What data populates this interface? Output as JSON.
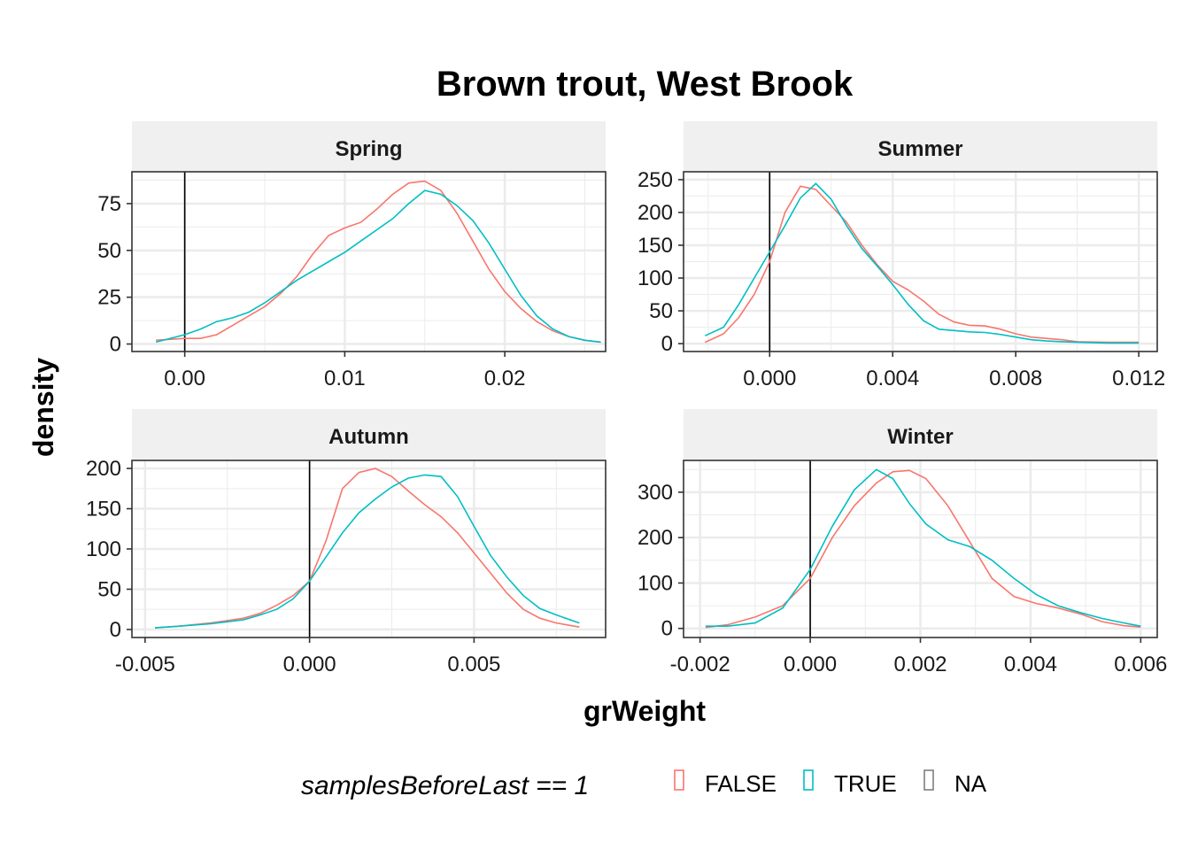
{
  "chart_data": {
    "type": "line",
    "chart_kind": "density",
    "title": "Brown trout, West Brook",
    "xlabel": "grWeight",
    "ylabel": "density",
    "grid": true,
    "legend": {
      "title": "samplesBeforeLast == 1",
      "placement": "bottom",
      "entries": [
        {
          "label": "FALSE",
          "color": "#F8766D"
        },
        {
          "label": "TRUE",
          "color": "#00BFC4"
        },
        {
          "label": "NA",
          "color": "#7F7F7F"
        }
      ]
    },
    "colors": {
      "FALSE": "#F8766D",
      "TRUE": "#00BFC4",
      "strip_bg": "#F0F0F0",
      "grid": "#EBEBEB"
    },
    "panels": [
      {
        "facet": "Spring",
        "xlim": [
          -0.0033,
          0.0263
        ],
        "ylim": [
          -4,
          92
        ],
        "xticks": [
          0,
          0.01,
          0.02
        ],
        "xtick_labels": [
          "0.00",
          "0.01",
          "0.02"
        ],
        "yticks": [
          0,
          25,
          50,
          75
        ],
        "ytick_labels": [
          "0",
          "25",
          "50",
          "75"
        ],
        "vline": 0,
        "series": [
          {
            "group": "FALSE",
            "x": [
              -0.0018,
              0.0,
              0.001,
              0.002,
              0.003,
              0.004,
              0.005,
              0.006,
              0.007,
              0.008,
              0.009,
              0.01,
              0.011,
              0.012,
              0.013,
              0.014,
              0.015,
              0.016,
              0.017,
              0.018,
              0.019,
              0.02,
              0.021,
              0.022,
              0.023,
              0.024,
              0.025,
              0.026
            ],
            "y": [
              2,
              3,
              3,
              5,
              10,
              15,
              20,
              27,
              36,
              48,
              58,
              62,
              65,
              72,
              80,
              86,
              87,
              82,
              70,
              55,
              40,
              28,
              19,
              12,
              7,
              4,
              2,
              1
            ]
          },
          {
            "group": "TRUE",
            "x": [
              -0.0018,
              0.0,
              0.001,
              0.002,
              0.003,
              0.004,
              0.005,
              0.006,
              0.007,
              0.008,
              0.009,
              0.01,
              0.011,
              0.012,
              0.013,
              0.014,
              0.015,
              0.016,
              0.017,
              0.018,
              0.019,
              0.02,
              0.021,
              0.022,
              0.023,
              0.024,
              0.025,
              0.026
            ],
            "y": [
              1,
              5,
              8,
              12,
              14,
              17,
              22,
              28,
              34,
              39,
              44,
              49,
              55,
              61,
              67,
              75,
              82,
              80,
              74,
              66,
              54,
              40,
              26,
              15,
              8,
              4,
              2,
              1
            ]
          }
        ]
      },
      {
        "facet": "Summer",
        "xlim": [
          -0.0028,
          0.0126
        ],
        "ylim": [
          -12,
          262
        ],
        "xticks": [
          0,
          0.004,
          0.008,
          0.012
        ],
        "xtick_labels": [
          "0.000",
          "0.004",
          "0.008",
          "0.012"
        ],
        "yticks": [
          0,
          50,
          100,
          150,
          200,
          250
        ],
        "ytick_labels": [
          "0",
          "50",
          "100",
          "150",
          "200",
          "250"
        ],
        "vline": 0,
        "series": [
          {
            "group": "FALSE",
            "x": [
              -0.0021,
              -0.0015,
              -0.001,
              -0.0005,
              0.0,
              0.0005,
              0.001,
              0.0015,
              0.002,
              0.0025,
              0.003,
              0.0035,
              0.004,
              0.0045,
              0.005,
              0.0055,
              0.006,
              0.0065,
              0.007,
              0.0075,
              0.008,
              0.0085,
              0.009,
              0.0095,
              0.01,
              0.011,
              0.012
            ],
            "y": [
              2,
              15,
              40,
              75,
              125,
              200,
              240,
              235,
              210,
              185,
              150,
              120,
              95,
              82,
              65,
              45,
              33,
              28,
              27,
              22,
              15,
              10,
              8,
              6,
              3,
              2,
              2
            ]
          },
          {
            "group": "TRUE",
            "x": [
              -0.0021,
              -0.0015,
              -0.001,
              -0.0005,
              0.0,
              0.0005,
              0.001,
              0.0015,
              0.002,
              0.0025,
              0.003,
              0.0035,
              0.004,
              0.0045,
              0.005,
              0.0055,
              0.006,
              0.0065,
              0.007,
              0.0075,
              0.008,
              0.0085,
              0.009,
              0.0095,
              0.01,
              0.011,
              0.012
            ],
            "y": [
              12,
              25,
              60,
              100,
              140,
              180,
              222,
              244,
              220,
              180,
              145,
              118,
              90,
              60,
              35,
              22,
              20,
              18,
              17,
              14,
              10,
              6,
              4,
              3,
              2,
              1,
              1
            ]
          }
        ]
      },
      {
        "facet": "Autumn",
        "xlim": [
          -0.0054,
          0.009
        ],
        "ylim": [
          -10,
          210
        ],
        "xticks": [
          -0.005,
          0,
          0.005
        ],
        "xtick_labels": [
          "-0.005",
          "0.000",
          "0.005"
        ],
        "yticks": [
          0,
          50,
          100,
          150,
          200
        ],
        "ytick_labels": [
          "0",
          "50",
          "100",
          "150",
          "200"
        ],
        "vline": 0,
        "series": [
          {
            "group": "FALSE",
            "x": [
              -0.0047,
              -0.004,
              -0.003,
              -0.002,
              -0.0015,
              -0.001,
              -0.0005,
              0.0,
              0.0005,
              0.001,
              0.0015,
              0.002,
              0.0025,
              0.003,
              0.0035,
              0.004,
              0.0045,
              0.005,
              0.0055,
              0.006,
              0.0065,
              0.007,
              0.0075,
              0.0082
            ],
            "y": [
              2,
              4,
              8,
              14,
              20,
              30,
              42,
              60,
              110,
              175,
              195,
              200,
              190,
              172,
              155,
              140,
              120,
              95,
              70,
              45,
              25,
              14,
              8,
              3
            ]
          },
          {
            "group": "TRUE",
            "x": [
              -0.0047,
              -0.004,
              -0.003,
              -0.002,
              -0.0015,
              -0.001,
              -0.0005,
              0.0,
              0.0005,
              0.001,
              0.0015,
              0.002,
              0.0025,
              0.003,
              0.0035,
              0.004,
              0.0045,
              0.005,
              0.0055,
              0.006,
              0.0065,
              0.007,
              0.0075,
              0.0082
            ],
            "y": [
              2,
              4,
              7,
              12,
              18,
              25,
              38,
              60,
              90,
              120,
              145,
              162,
              177,
              188,
              192,
              190,
              165,
              128,
              92,
              65,
              42,
              26,
              18,
              8
            ]
          }
        ]
      },
      {
        "facet": "Winter",
        "xlim": [
          -0.0023,
          0.0063
        ],
        "ylim": [
          -20,
          370
        ],
        "xticks": [
          -0.002,
          0,
          0.002,
          0.004,
          0.006
        ],
        "xtick_labels": [
          "-0.002",
          "0.000",
          "0.002",
          "0.004",
          "0.006"
        ],
        "yticks": [
          0,
          100,
          200,
          300
        ],
        "ytick_labels": [
          "0",
          "100",
          "200",
          "300"
        ],
        "vline": 0,
        "series": [
          {
            "group": "FALSE",
            "x": [
              -0.0019,
              -0.0015,
              -0.001,
              -0.0005,
              0.0,
              0.0004,
              0.0008,
              0.0012,
              0.0015,
              0.0018,
              0.0021,
              0.0025,
              0.0029,
              0.0033,
              0.0037,
              0.0041,
              0.0045,
              0.0049,
              0.0053,
              0.0057,
              0.006
            ],
            "y": [
              2,
              8,
              25,
              50,
              110,
              200,
              270,
              320,
              345,
              348,
              330,
              270,
              190,
              110,
              70,
              55,
              45,
              32,
              15,
              6,
              3
            ]
          },
          {
            "group": "TRUE",
            "x": [
              -0.0019,
              -0.0015,
              -0.001,
              -0.0005,
              0.0,
              0.0004,
              0.0008,
              0.0012,
              0.0015,
              0.0018,
              0.0021,
              0.0025,
              0.0029,
              0.0033,
              0.0037,
              0.0041,
              0.0045,
              0.0049,
              0.0053,
              0.0057,
              0.006
            ],
            "y": [
              5,
              5,
              12,
              45,
              130,
              225,
              305,
              350,
              330,
              275,
              230,
              195,
              180,
              150,
              110,
              75,
              50,
              35,
              22,
              12,
              5
            ]
          }
        ]
      }
    ]
  }
}
